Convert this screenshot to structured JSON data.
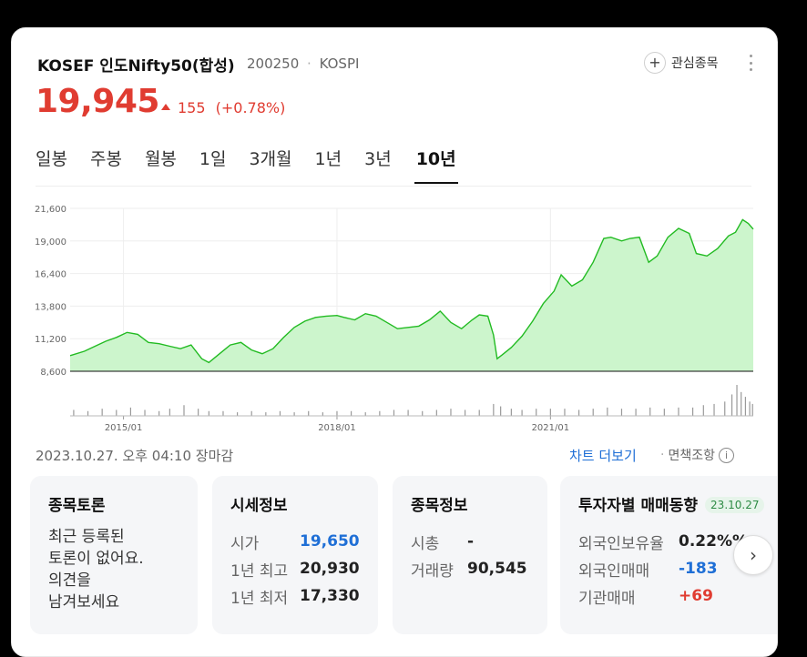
{
  "header": {
    "stock_name": "KOSEF 인도Nifty50(합성)",
    "stock_code": "200250",
    "separator": "·",
    "market": "KOSPI",
    "favorite_label": "관심종목"
  },
  "quote": {
    "price": "19,945",
    "change": "155",
    "change_pct": "(+0.78%)"
  },
  "tabs": [
    {
      "label": "일봉"
    },
    {
      "label": "주봉"
    },
    {
      "label": "월봉"
    },
    {
      "label": "1일"
    },
    {
      "label": "3개월"
    },
    {
      "label": "1년"
    },
    {
      "label": "3년"
    },
    {
      "label": "10년",
      "active": true
    }
  ],
  "chart_data": {
    "type": "area",
    "ylim": [
      8600,
      21600
    ],
    "yticks": [
      "21,600",
      "19,000",
      "16,400",
      "13,800",
      "11,200",
      "8,600"
    ],
    "ytick_values": [
      21600,
      19000,
      16400,
      13800,
      11200,
      8600
    ],
    "xtick_labels": [
      "2015/01",
      "2018/01",
      "2021/01"
    ],
    "xtick_years": [
      2015.0,
      2018.0,
      2021.0
    ],
    "xlim": [
      2014.25,
      2023.85
    ],
    "price_color": "#22bb22",
    "fill_color": "#ccf5cc",
    "volume_color": "#999999",
    "price_series": [
      [
        2014.25,
        9850
      ],
      [
        2014.45,
        10200
      ],
      [
        2014.6,
        10600
      ],
      [
        2014.75,
        11000
      ],
      [
        2014.9,
        11300
      ],
      [
        2015.05,
        11700
      ],
      [
        2015.2,
        11550
      ],
      [
        2015.35,
        10900
      ],
      [
        2015.5,
        10800
      ],
      [
        2015.65,
        10600
      ],
      [
        2015.8,
        10400
      ],
      [
        2015.95,
        10700
      ],
      [
        2016.1,
        9600
      ],
      [
        2016.2,
        9300
      ],
      [
        2016.35,
        10000
      ],
      [
        2016.5,
        10700
      ],
      [
        2016.65,
        10900
      ],
      [
        2016.8,
        10300
      ],
      [
        2016.95,
        10000
      ],
      [
        2017.1,
        10400
      ],
      [
        2017.25,
        11300
      ],
      [
        2017.4,
        12100
      ],
      [
        2017.55,
        12600
      ],
      [
        2017.7,
        12900
      ],
      [
        2017.85,
        13000
      ],
      [
        2018.0,
        13050
      ],
      [
        2018.1,
        12900
      ],
      [
        2018.25,
        12700
      ],
      [
        2018.4,
        13200
      ],
      [
        2018.55,
        13000
      ],
      [
        2018.7,
        12500
      ],
      [
        2018.85,
        12000
      ],
      [
        2019.0,
        12100
      ],
      [
        2019.15,
        12200
      ],
      [
        2019.3,
        12700
      ],
      [
        2019.45,
        13400
      ],
      [
        2019.6,
        12500
      ],
      [
        2019.75,
        12000
      ],
      [
        2019.9,
        12700
      ],
      [
        2020.0,
        13100
      ],
      [
        2020.12,
        13000
      ],
      [
        2020.2,
        11500
      ],
      [
        2020.25,
        9600
      ],
      [
        2020.32,
        9900
      ],
      [
        2020.45,
        10500
      ],
      [
        2020.6,
        11400
      ],
      [
        2020.75,
        12600
      ],
      [
        2020.9,
        14000
      ],
      [
        2021.05,
        15000
      ],
      [
        2021.15,
        16300
      ],
      [
        2021.3,
        15400
      ],
      [
        2021.45,
        15900
      ],
      [
        2021.6,
        17300
      ],
      [
        2021.75,
        19200
      ],
      [
        2021.85,
        19300
      ],
      [
        2022.0,
        19000
      ],
      [
        2022.12,
        19200
      ],
      [
        2022.25,
        19300
      ],
      [
        2022.38,
        17300
      ],
      [
        2022.5,
        17800
      ],
      [
        2022.65,
        19300
      ],
      [
        2022.8,
        20000
      ],
      [
        2022.95,
        19600
      ],
      [
        2023.05,
        18000
      ],
      [
        2023.2,
        17800
      ],
      [
        2023.35,
        18400
      ],
      [
        2023.5,
        19400
      ],
      [
        2023.6,
        19700
      ],
      [
        2023.7,
        20700
      ],
      [
        2023.78,
        20400
      ],
      [
        2023.85,
        19945
      ]
    ],
    "volume_series": [
      [
        2014.3,
        0.05
      ],
      [
        2014.5,
        0.04
      ],
      [
        2014.7,
        0.06
      ],
      [
        2014.9,
        0.05
      ],
      [
        2015.1,
        0.07
      ],
      [
        2015.3,
        0.05
      ],
      [
        2015.5,
        0.04
      ],
      [
        2015.65,
        0.06
      ],
      [
        2015.85,
        0.09
      ],
      [
        2016.05,
        0.06
      ],
      [
        2016.2,
        0.04
      ],
      [
        2016.4,
        0.04
      ],
      [
        2016.6,
        0.03
      ],
      [
        2016.8,
        0.04
      ],
      [
        2017.0,
        0.03
      ],
      [
        2017.2,
        0.04
      ],
      [
        2017.4,
        0.03
      ],
      [
        2017.6,
        0.04
      ],
      [
        2017.8,
        0.03
      ],
      [
        2018.0,
        0.04
      ],
      [
        2018.2,
        0.04
      ],
      [
        2018.4,
        0.03
      ],
      [
        2018.6,
        0.04
      ],
      [
        2018.8,
        0.05
      ],
      [
        2019.0,
        0.05
      ],
      [
        2019.2,
        0.04
      ],
      [
        2019.4,
        0.05
      ],
      [
        2019.6,
        0.06
      ],
      [
        2019.8,
        0.05
      ],
      [
        2020.0,
        0.05
      ],
      [
        2020.2,
        0.1
      ],
      [
        2020.3,
        0.08
      ],
      [
        2020.45,
        0.06
      ],
      [
        2020.6,
        0.05
      ],
      [
        2020.8,
        0.06
      ],
      [
        2021.0,
        0.06
      ],
      [
        2021.2,
        0.06
      ],
      [
        2021.4,
        0.05
      ],
      [
        2021.6,
        0.06
      ],
      [
        2021.8,
        0.07
      ],
      [
        2022.0,
        0.06
      ],
      [
        2022.2,
        0.06
      ],
      [
        2022.4,
        0.07
      ],
      [
        2022.6,
        0.06
      ],
      [
        2022.8,
        0.07
      ],
      [
        2023.0,
        0.07
      ],
      [
        2023.15,
        0.09
      ],
      [
        2023.3,
        0.1
      ],
      [
        2023.45,
        0.12
      ],
      [
        2023.55,
        0.18
      ],
      [
        2023.62,
        0.26
      ],
      [
        2023.68,
        0.2
      ],
      [
        2023.74,
        0.16
      ],
      [
        2023.8,
        0.12
      ],
      [
        2023.84,
        0.1
      ]
    ]
  },
  "status": {
    "timestamp": "2023.10.27. 오후 04:10 장마감",
    "chart_more": "차트 더보기",
    "separator": "·",
    "disclaimer": "면책조항",
    "info_glyph": "i"
  },
  "panels": {
    "discussion": {
      "title": "종목토론",
      "lines": [
        "최근 등록된",
        "토론이 없어요.",
        "의견을",
        "남겨보세요"
      ]
    },
    "quote_info": {
      "title": "시세정보",
      "rows": [
        {
          "label": "시가",
          "value": "19,650",
          "color": "blue"
        },
        {
          "label": "1년 최고",
          "value": "20,930",
          "color": "default"
        },
        {
          "label": "1년 최저",
          "value": "17,330",
          "color": "default"
        }
      ]
    },
    "stock_info": {
      "title": "종목정보",
      "rows": [
        {
          "label": "시총",
          "value": "-"
        },
        {
          "label": "거래량",
          "value": "90,545"
        }
      ]
    },
    "investor": {
      "title": "투자자별 매매동향",
      "date": "23.10.27",
      "rows": [
        {
          "label": "외국인보유율",
          "value": "0.22%%",
          "color": "default"
        },
        {
          "label": "외국인매매",
          "value": "-183",
          "color": "blue"
        },
        {
          "label": "기관매매",
          "value": "+69",
          "color": "red"
        }
      ]
    }
  },
  "icons": {
    "plus": "+",
    "chevron_right": "›"
  },
  "colors": {
    "rise": "#e03c31",
    "fall": "#1f6fd6",
    "link": "#1f6fd6"
  }
}
